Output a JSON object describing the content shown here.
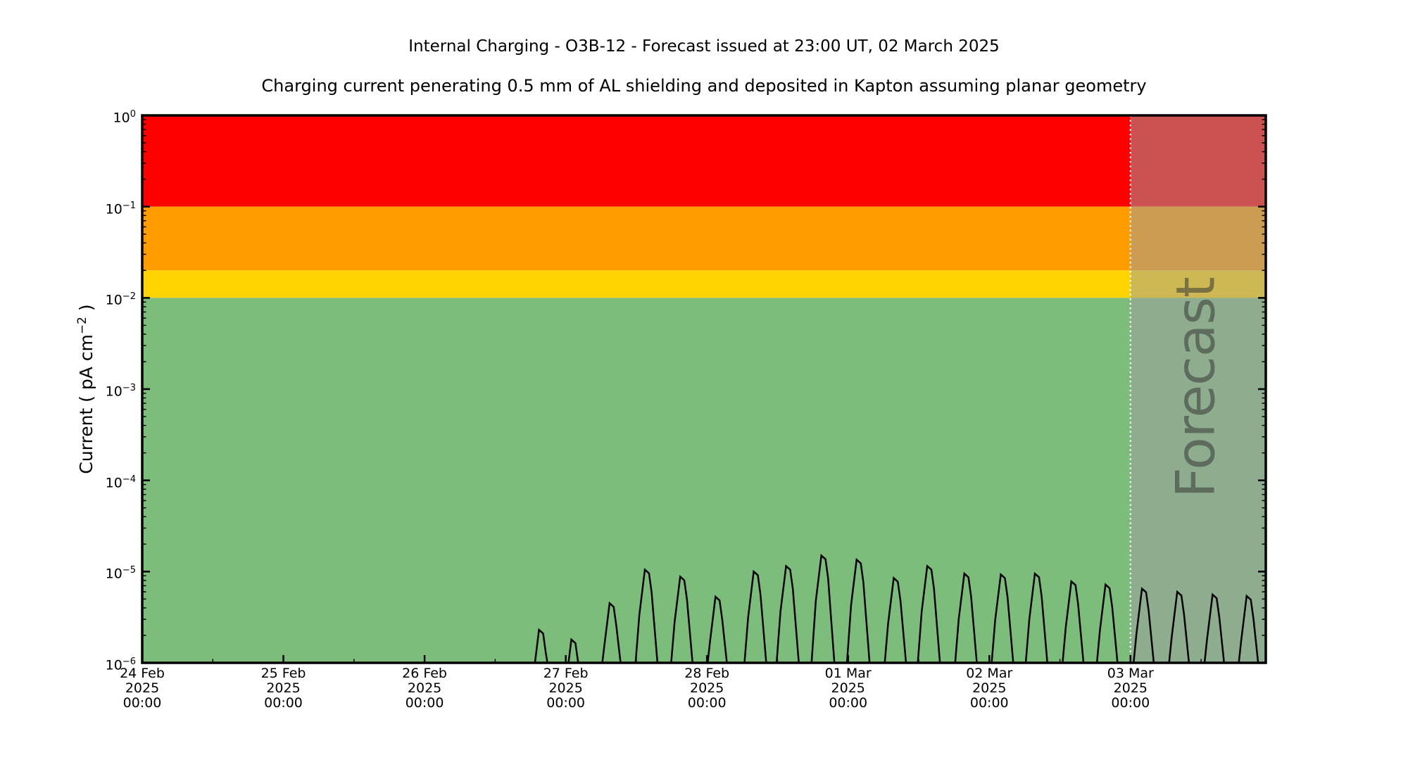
{
  "title": "Internal Charging - O3B-12 - Forecast issued at 23:00 UT, 02 March 2025",
  "subtitle": "Charging current penerating 0.5 mm of AL shielding and deposited in Kapton assuming planar geometry",
  "y_axis_label": {
    "prefix": "Current ( pA cm",
    "sup": "−2",
    "suffix": " )"
  },
  "y_axis": {
    "tick_base": "10",
    "tick_exponents": [
      "0",
      "−1",
      "−2",
      "−3",
      "−4",
      "−5",
      "−6"
    ]
  },
  "x_axis": {
    "ticks": [
      {
        "hours": 0,
        "date": "24 Feb",
        "year": "2025",
        "time": "00:00"
      },
      {
        "hours": 24,
        "date": "25 Feb",
        "year": "2025",
        "time": "00:00"
      },
      {
        "hours": 48,
        "date": "26 Feb",
        "year": "2025",
        "time": "00:00"
      },
      {
        "hours": 72,
        "date": "27 Feb",
        "year": "2025",
        "time": "00:00"
      },
      {
        "hours": 96,
        "date": "28 Feb",
        "year": "2025",
        "time": "00:00"
      },
      {
        "hours": 120,
        "date": "01 Mar",
        "year": "2025",
        "time": "00:00"
      },
      {
        "hours": 144,
        "date": "02 Mar",
        "year": "2025",
        "time": "00:00"
      },
      {
        "hours": 168,
        "date": "03 Mar",
        "year": "2025",
        "time": "00:00"
      }
    ],
    "minor_tick_hours": 12
  },
  "colors": {
    "band_red": "#ff0000",
    "band_orange": "#ff9c00",
    "band_yellow": "#ffd400",
    "band_green": "#7cbd7c",
    "forecast_overlay": "rgba(160,160,160,0.52)",
    "forecast_divider": "#ffffff",
    "curve": "#000000",
    "axis": "#000000"
  },
  "chart_data": {
    "type": "line",
    "title": "Internal Charging - O3B-12 - Forecast issued at 23:00 UT, 02 March 2025",
    "subtitle": "Charging current penerating 0.5 mm of AL shielding and deposited in Kapton assuming planar geometry",
    "x_axis": {
      "start": "2025-02-24 00:00 UT",
      "end": "2025-03-03 23:00 UT",
      "span_hours": 191,
      "major_tick_every_hours": 24,
      "minor_tick_every_hours": 12,
      "tick_label_lines": [
        "day month",
        "year",
        "HH:MM"
      ]
    },
    "y_axis": {
      "label": "Current ( pA cm⁻² )",
      "scale": "log",
      "range_pA_cm2": [
        1e-06,
        1
      ],
      "major_ticks": [
        1,
        0.1,
        0.01,
        0.001,
        0.0001,
        1e-05,
        1e-06
      ]
    },
    "grid": false,
    "legend": false,
    "threshold_bands": [
      {
        "level": "red",
        "range_pA_cm2": [
          0.1,
          1.0
        ],
        "color": "#ff0000"
      },
      {
        "level": "orange",
        "range_pA_cm2": [
          0.02,
          0.1
        ],
        "color": "#ff9c00"
      },
      {
        "level": "yellow",
        "range_pA_cm2": [
          0.01,
          0.02
        ],
        "color": "#ffd400"
      },
      {
        "level": "green",
        "range_pA_cm2": [
          1e-06,
          0.01
        ],
        "color": "#7cbd7c"
      }
    ],
    "forecast": {
      "label": "Forecast",
      "start": "2025-03-03 00:00 UT",
      "start_hours": 168,
      "divider_style": "white dotted vertical line",
      "overlay_color": "rgba(160,160,160,0.52)"
    },
    "series": [
      {
        "name": "Charging current",
        "color": "#000000",
        "baseline_note": "current at or below 1e-6 pA cm-2 (bottom of axis) between peaks; quasi-periodic peaks roughly every 6 h",
        "peaks": [
          {
            "hours_after_start": 68.0,
            "time": "26 Feb 20:00",
            "value_pA_cm2": 2.3e-06
          },
          {
            "hours_after_start": 73.5,
            "time": "27 Feb 01:30",
            "value_pA_cm2": 1.8e-06
          },
          {
            "hours_after_start": 80.0,
            "time": "27 Feb 08:00",
            "value_pA_cm2": 4.5e-06
          },
          {
            "hours_after_start": 86.0,
            "time": "27 Feb 14:00",
            "value_pA_cm2": 1.05e-05
          },
          {
            "hours_after_start": 92.0,
            "time": "27 Feb 20:00",
            "value_pA_cm2": 8.8e-06
          },
          {
            "hours_after_start": 98.0,
            "time": "28 Feb 02:00",
            "value_pA_cm2": 5.3e-06
          },
          {
            "hours_after_start": 104.5,
            "time": "28 Feb 08:30",
            "value_pA_cm2": 1e-05
          },
          {
            "hours_after_start": 110.0,
            "time": "28 Feb 14:00",
            "value_pA_cm2": 1.15e-05
          },
          {
            "hours_after_start": 116.0,
            "time": "28 Feb 20:00",
            "value_pA_cm2": 1.5e-05
          },
          {
            "hours_after_start": 122.0,
            "time": "01 Mar 02:00",
            "value_pA_cm2": 1.35e-05
          },
          {
            "hours_after_start": 128.3,
            "time": "01 Mar 08:20",
            "value_pA_cm2": 8.5e-06
          },
          {
            "hours_after_start": 134.0,
            "time": "01 Mar 14:00",
            "value_pA_cm2": 1.15e-05
          },
          {
            "hours_after_start": 140.3,
            "time": "01 Mar 20:20",
            "value_pA_cm2": 9.5e-06
          },
          {
            "hours_after_start": 146.5,
            "time": "02 Mar 02:30",
            "value_pA_cm2": 9.3e-06
          },
          {
            "hours_after_start": 152.3,
            "time": "02 Mar 08:20",
            "value_pA_cm2": 9.5e-06
          },
          {
            "hours_after_start": 158.5,
            "time": "02 Mar 14:30",
            "value_pA_cm2": 7.8e-06
          },
          {
            "hours_after_start": 164.3,
            "time": "02 Mar 20:20",
            "value_pA_cm2": 7.2e-06
          },
          {
            "hours_after_start": 170.5,
            "time": "03 Mar 02:30",
            "value_pA_cm2": 6.5e-06
          },
          {
            "hours_after_start": 176.5,
            "time": "03 Mar 08:30",
            "value_pA_cm2": 6e-06
          },
          {
            "hours_after_start": 182.5,
            "time": "03 Mar 14:30",
            "value_pA_cm2": 5.6e-06
          },
          {
            "hours_after_start": 188.3,
            "time": "03 Mar 20:20",
            "value_pA_cm2": 5.4e-06
          }
        ]
      }
    ]
  }
}
